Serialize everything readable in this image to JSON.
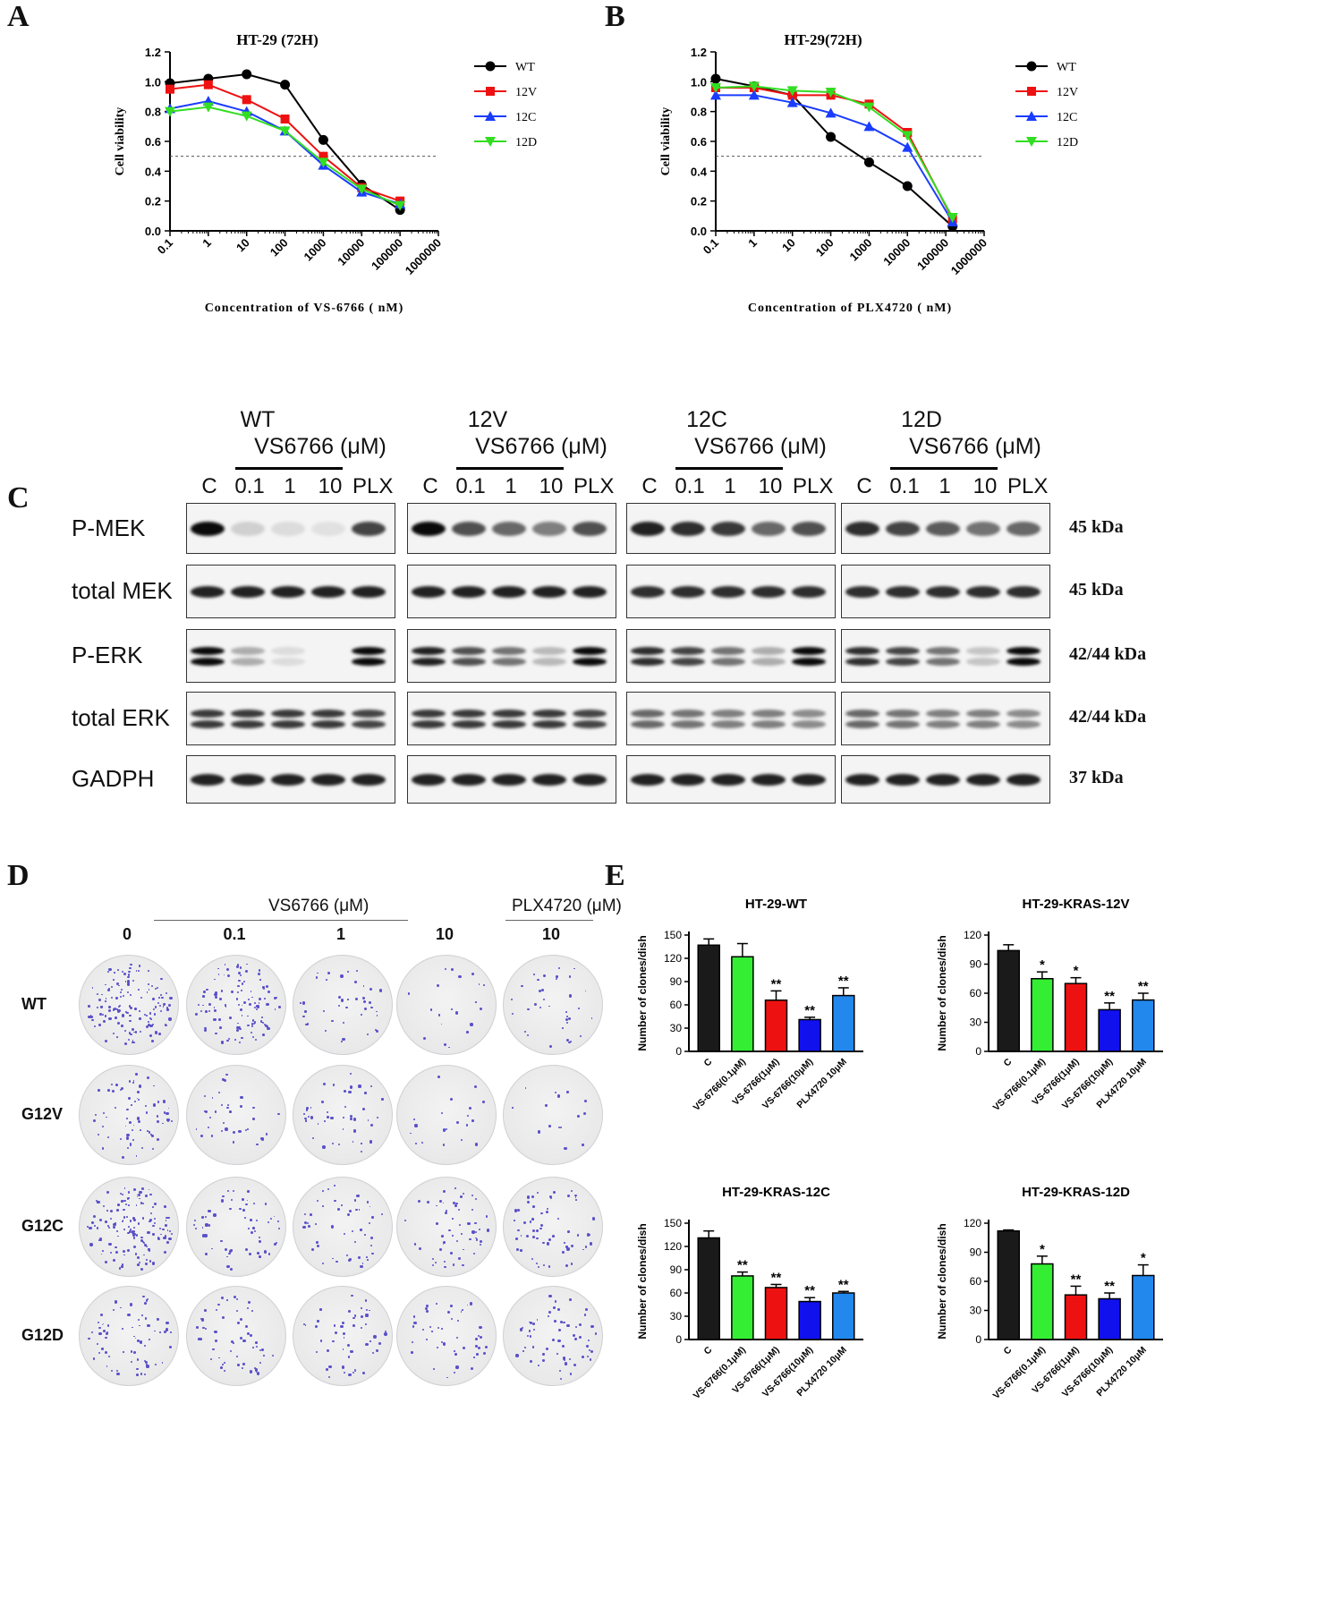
{
  "panels": {
    "A": "A",
    "B": "B",
    "C": "C",
    "D": "D",
    "E": "E"
  },
  "viability_legend": [
    "WT",
    "12V",
    "12C",
    "12D"
  ],
  "series_colors": {
    "WT": "#000000",
    "12V": "#ee1111",
    "12C": "#1a3cff",
    "12D": "#33dd22"
  },
  "chart_data": [
    {
      "id": "A",
      "type": "line",
      "title": "HT-29 (72H)",
      "xlabel": "Concentration  of  VS-6766 ( nM)",
      "ylabel": "Cell  viability",
      "x_scale": "log",
      "x": [
        0.1,
        1,
        10,
        100,
        1000,
        10000,
        100000
      ],
      "x_ticks": [
        "0.1",
        "1",
        "10",
        "100",
        "1000",
        "10000",
        "100000",
        "1000000"
      ],
      "y_ticks": [
        "0.0",
        "0.2",
        "0.4",
        "0.6",
        "0.8",
        "1.0",
        "1.2"
      ],
      "ylim": [
        0,
        1.2
      ],
      "reference_line": 0.5,
      "series": [
        {
          "name": "WT",
          "values": [
            0.99,
            1.02,
            1.05,
            0.98,
            0.61,
            0.31,
            0.14
          ]
        },
        {
          "name": "12V",
          "values": [
            0.95,
            0.98,
            0.88,
            0.75,
            0.5,
            0.29,
            0.2
          ]
        },
        {
          "name": "12C",
          "values": [
            0.82,
            0.87,
            0.8,
            0.67,
            0.44,
            0.26,
            0.18
          ]
        },
        {
          "name": "12D",
          "values": [
            0.8,
            0.83,
            0.77,
            0.67,
            0.46,
            0.28,
            0.17
          ]
        }
      ]
    },
    {
      "id": "B",
      "type": "line",
      "title": "HT-29(72H)",
      "xlabel": "Concentration  of  PLX4720 ( nM)",
      "ylabel": "Cell  viability",
      "x_scale": "log",
      "x": [
        0.1,
        1,
        10,
        100,
        1000,
        10000,
        150000
      ],
      "x_ticks": [
        "0.1",
        "1",
        "10",
        "100",
        "1000",
        "10000",
        "100000",
        "1000000"
      ],
      "y_ticks": [
        "0.0",
        "0.2",
        "0.4",
        "0.6",
        "0.8",
        "1.0",
        "1.2"
      ],
      "ylim": [
        0,
        1.2
      ],
      "reference_line": 0.5,
      "series": [
        {
          "name": "WT",
          "values": [
            1.02,
            0.97,
            0.91,
            0.63,
            0.46,
            0.3,
            0.03
          ]
        },
        {
          "name": "12V",
          "values": [
            0.96,
            0.96,
            0.91,
            0.91,
            0.85,
            0.66,
            0.08
          ]
        },
        {
          "name": "12C",
          "values": [
            0.91,
            0.91,
            0.86,
            0.79,
            0.7,
            0.56,
            0.06
          ]
        },
        {
          "name": "12D",
          "values": [
            0.96,
            0.97,
            0.94,
            0.93,
            0.83,
            0.64,
            0.09
          ]
        }
      ]
    },
    {
      "id": "E1",
      "type": "bar",
      "title": "HT-29-WT",
      "ylabel": "Number of clones/dish",
      "categories": [
        "C",
        "VS-6766(0.1μM)",
        "VS-6766(1μM)",
        "VS-6766(10μM)",
        "PLX4720 10μM"
      ],
      "values": [
        137,
        122,
        66,
        41,
        72
      ],
      "errors": [
        8,
        17,
        12,
        3,
        10
      ],
      "significance": [
        "",
        "",
        "**",
        "**",
        "**"
      ],
      "y_ticks": [
        "0",
        "30",
        "60",
        "90",
        "120",
        "150"
      ],
      "ylim": [
        0,
        150
      ]
    },
    {
      "id": "E2",
      "type": "bar",
      "title": "HT-29-KRAS-12V",
      "ylabel": "Number of clones/dish",
      "categories": [
        "C",
        "VS-6766(0.1μM)",
        "VS-6766(1μM)",
        "VS-6766(10μM)",
        "PLX4720 10μM"
      ],
      "values": [
        104,
        75,
        70,
        43,
        53
      ],
      "errors": [
        6,
        7,
        6,
        7,
        7
      ],
      "significance": [
        "",
        "*",
        "*",
        "**",
        "**"
      ],
      "y_ticks": [
        "0",
        "30",
        "60",
        "90",
        "120"
      ],
      "ylim": [
        0,
        120
      ]
    },
    {
      "id": "E3",
      "type": "bar",
      "title": "HT-29-KRAS-12C",
      "ylabel": "Number of clones/dish",
      "categories": [
        "C",
        "VS-6766(0.1μM)",
        "VS-6766(1μM)",
        "VS-6766(10μM)",
        "PLX4720 10μM"
      ],
      "values": [
        131,
        82,
        67,
        49,
        60
      ],
      "errors": [
        9,
        5,
        4,
        5,
        2
      ],
      "significance": [
        "",
        "**",
        "**",
        "**",
        "**"
      ],
      "y_ticks": [
        "0",
        "30",
        "60",
        "90",
        "120",
        "150"
      ],
      "ylim": [
        0,
        150
      ]
    },
    {
      "id": "E4",
      "type": "bar",
      "title": "HT-29-KRAS-12D",
      "ylabel": "Number of clones/dish",
      "categories": [
        "C",
        "VS-6766(0.1μM)",
        "VS-6766(1μM)",
        "VS-6766(10μM)",
        "PLX4720 10μM"
      ],
      "values": [
        112,
        78,
        46,
        42,
        66
      ],
      "errors": [
        1,
        8,
        9,
        6,
        11
      ],
      "significance": [
        "",
        "*",
        "**",
        "**",
        "*"
      ],
      "y_ticks": [
        "0",
        "30",
        "60",
        "90",
        "120"
      ],
      "ylim": [
        0,
        120
      ]
    }
  ],
  "bar_colors": [
    "#1a1a1a",
    "#33ee33",
    "#ee1111",
    "#1111ee",
    "#2288ee"
  ],
  "western": {
    "groups": [
      {
        "genotype": "WT",
        "drug": "VS6766 (μM)"
      },
      {
        "genotype": "12V",
        "drug": "VS6766 (μM)"
      },
      {
        "genotype": "12C",
        "drug": "VS6766 (μM)"
      },
      {
        "genotype": "12D",
        "drug": "VS6766 (μM)"
      }
    ],
    "lanes": [
      "C",
      "0.1",
      "1",
      "10",
      "PLX"
    ],
    "rows": [
      {
        "label": "P-MEK",
        "kda": "45 kDa"
      },
      {
        "label": "total MEK",
        "kda": "45 kDa"
      },
      {
        "label": "P-ERK",
        "kda": "42/44 kDa"
      },
      {
        "label": "total ERK",
        "kda": "42/44 kDa"
      },
      {
        "label": "GADPH",
        "kda": "37 kDa"
      }
    ],
    "band_intensity": [
      [
        [
          1.0,
          0.15,
          0.1,
          0.08,
          0.75
        ],
        [
          1.0,
          0.7,
          0.6,
          0.5,
          0.7
        ],
        [
          0.9,
          0.85,
          0.8,
          0.6,
          0.7
        ],
        [
          0.85,
          0.75,
          0.65,
          0.55,
          0.6
        ]
      ],
      [
        [
          0.9,
          0.9,
          0.9,
          0.9,
          0.9
        ],
        [
          0.9,
          0.9,
          0.9,
          0.9,
          0.9
        ],
        [
          0.85,
          0.85,
          0.85,
          0.85,
          0.85
        ],
        [
          0.85,
          0.85,
          0.85,
          0.85,
          0.85
        ]
      ],
      [
        [
          1.0,
          0.3,
          0.1,
          0.0,
          1.0
        ],
        [
          0.9,
          0.7,
          0.55,
          0.25,
          1.0
        ],
        [
          0.85,
          0.75,
          0.55,
          0.3,
          1.0
        ],
        [
          0.85,
          0.75,
          0.55,
          0.2,
          1.0
        ]
      ],
      [
        [
          0.8,
          0.8,
          0.8,
          0.8,
          0.75
        ],
        [
          0.8,
          0.8,
          0.8,
          0.8,
          0.75
        ],
        [
          0.6,
          0.55,
          0.5,
          0.5,
          0.45
        ],
        [
          0.6,
          0.55,
          0.5,
          0.5,
          0.45
        ]
      ],
      [
        [
          0.9,
          0.9,
          0.9,
          0.9,
          0.9
        ],
        [
          0.9,
          0.9,
          0.9,
          0.9,
          0.9
        ],
        [
          0.9,
          0.9,
          0.9,
          0.9,
          0.9
        ],
        [
          0.9,
          0.9,
          0.9,
          0.9,
          0.9
        ]
      ]
    ]
  },
  "colony": {
    "drug_header": "VS6766 (μM)",
    "plx_header": "PLX4720 (μM)",
    "concentrations": [
      "0",
      "0.1",
      "1",
      "10",
      "10"
    ],
    "rows": [
      "WT",
      "G12V",
      "G12C",
      "G12D"
    ],
    "colony_density": [
      [
        140,
        110,
        40,
        20,
        35
      ],
      [
        70,
        35,
        45,
        20,
        15
      ],
      [
        140,
        60,
        50,
        55,
        60
      ],
      [
        70,
        55,
        50,
        45,
        60
      ]
    ]
  }
}
